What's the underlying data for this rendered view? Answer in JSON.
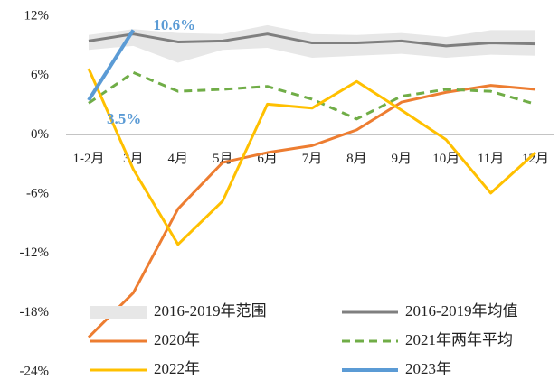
{
  "chart_data": {
    "type": "line",
    "categories": [
      "1-2月",
      "3月",
      "4月",
      "5月",
      "6月",
      "7月",
      "8月",
      "9月",
      "10月",
      "11月",
      "12月"
    ],
    "ylim": [
      -24,
      12
    ],
    "yticks": [
      {
        "value": 12,
        "label": "12%"
      },
      {
        "value": 6,
        "label": "6%"
      },
      {
        "value": 0,
        "label": "0%"
      },
      {
        "value": -6,
        "label": "-6%"
      },
      {
        "value": -12,
        "label": "-12%"
      },
      {
        "value": -18,
        "label": "-18%"
      },
      {
        "value": -24,
        "label": "-24%"
      }
    ],
    "grid": false,
    "legend": "bottom",
    "series": [
      {
        "name": "2016-2019年范围",
        "color": "#e7e7e7",
        "type": "band",
        "low": [
          8.6,
          9.0,
          7.3,
          8.6,
          8.8,
          7.8,
          8.0,
          8.2,
          7.8,
          8.1,
          8.0
        ],
        "high": [
          10.1,
          10.7,
          10.3,
          10.2,
          11.1,
          10.2,
          10.1,
          10.3,
          9.9,
          10.6,
          10.6
        ]
      },
      {
        "name": "2016-2019年均值",
        "color": "#7f7f7f",
        "values": [
          9.5,
          10.2,
          9.4,
          9.5,
          10.2,
          9.3,
          9.3,
          9.5,
          9.0,
          9.3,
          9.2
        ]
      },
      {
        "name": "2020年",
        "color": "#ed7d31",
        "values": [
          -20.5,
          -16.0,
          -7.5,
          -2.8,
          -1.8,
          -1.1,
          0.5,
          3.3,
          4.3,
          5.0,
          4.6
        ]
      },
      {
        "name": "2021年两年平均",
        "color": "#70ad47",
        "dashed": true,
        "values": [
          3.2,
          6.3,
          4.4,
          4.6,
          4.9,
          3.6,
          1.6,
          3.9,
          4.6,
          4.4,
          3.1
        ]
      },
      {
        "name": "2022年",
        "color": "#ffc000",
        "values": [
          6.7,
          -3.5,
          -11.1,
          -6.7,
          3.1,
          2.7,
          5.4,
          2.5,
          -0.5,
          -5.9,
          -1.8
        ]
      },
      {
        "name": "2023年",
        "color": "#5b9bd5",
        "values": [
          3.5,
          10.6,
          null,
          null,
          null,
          null,
          null,
          null,
          null,
          null,
          null
        ],
        "value_labels": [
          "3.5%",
          "10.6%",
          null,
          null,
          null,
          null,
          null,
          null,
          null,
          null,
          null
        ]
      }
    ]
  }
}
